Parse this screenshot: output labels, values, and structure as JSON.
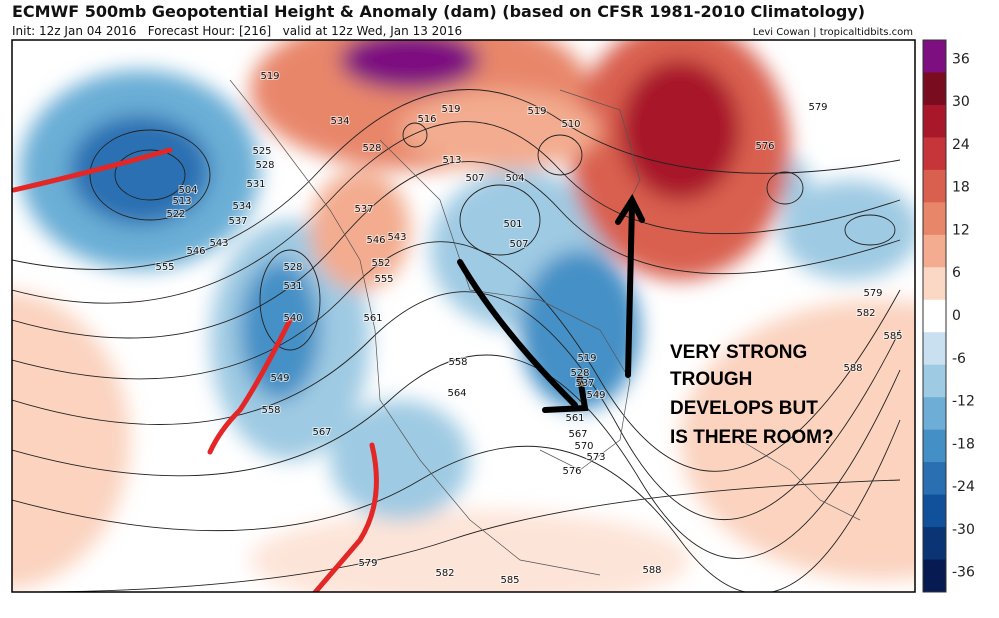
{
  "header": {
    "title": "ECMWF 500mb Geopotential Height & Anomaly (dam) (based on CFSR 1981-2010 Climatology)",
    "subtitle": "Init: 12z Jan 04 2016   Forecast Hour: [216]   valid at 12z Wed, Jan 13 2016",
    "credit": "Levi Cowan | tropicaltidbits.com"
  },
  "colorbar": {
    "ticks": [
      36,
      30,
      24,
      18,
      12,
      6,
      0,
      -6,
      -12,
      -18,
      -24,
      -30,
      -36
    ],
    "colors": [
      "#7d0f80",
      "#7a0c1f",
      "#a8182a",
      "#c6353a",
      "#d9604f",
      "#e8866a",
      "#f3ac8f",
      "#fbd8c6",
      "#ffffff",
      "#c9e0f0",
      "#9fcae3",
      "#6eaed6",
      "#4490c6",
      "#2a6fb2",
      "#11509a",
      "#0a3474",
      "#071a52"
    ]
  },
  "contour_labels": [
    "519",
    "516",
    "519",
    "519",
    "510",
    "534",
    "528",
    "513",
    "507",
    "504",
    "525",
    "528",
    "531",
    "534",
    "537",
    "543",
    "546",
    "555",
    "504",
    "513",
    "522",
    "537",
    "546",
    "543",
    "552",
    "555",
    "501",
    "507",
    "528",
    "531",
    "540",
    "561",
    "549",
    "558",
    "567",
    "558",
    "564",
    "519",
    "528",
    "537",
    "549",
    "561",
    "567",
    "570",
    "573",
    "576",
    "576",
    "579",
    "579",
    "582",
    "585",
    "588",
    "579",
    "582",
    "585",
    "588"
  ],
  "annotation": [
    "VERY STRONG",
    "TROUGH",
    "DEVELOPS BUT",
    "IS THERE ROOM?"
  ]
}
